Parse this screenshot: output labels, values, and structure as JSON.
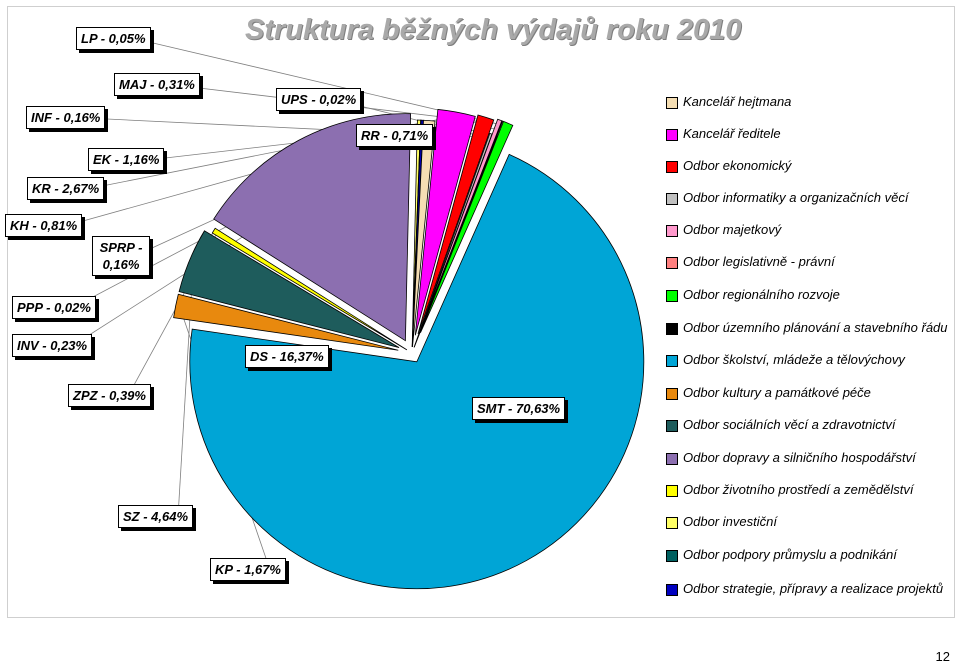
{
  "title": "Struktura běžných výdajů roku 2010",
  "page_number": "12",
  "chart_data": {
    "type": "pie",
    "title": "Struktura běžných výdajů roku 2010",
    "slices": [
      {
        "code": "SMT",
        "label": "SMT - 70,63%",
        "value": 70.63,
        "legend": "Odbor školství, mládeže a tělovýchovy",
        "color": "#00a5d6"
      },
      {
        "code": "KP",
        "label": "KP - 1,67%",
        "value": 1.67,
        "legend": "Odbor kultury a památkové péče",
        "color": "#e8890e"
      },
      {
        "code": "SZ",
        "label": "SZ - 4,64%",
        "value": 4.64,
        "legend": "Odbor sociálních věcí a zdravotnictví",
        "color": "#1e5c5c"
      },
      {
        "code": "ZPZ",
        "label": "ZPZ - 0,39%",
        "value": 0.39,
        "legend": "Odbor životního prostředí a zemědělství",
        "color": "#ffff00"
      },
      {
        "code": "DS",
        "label": "DS - 16,37%",
        "value": 16.37,
        "legend": "Odbor dopravy a silničního hospodářství",
        "color": "#8c6fb0"
      },
      {
        "code": "INV",
        "label": "INV - 0,23%",
        "value": 0.23,
        "legend": "Odbor investiční",
        "color": "#ffff66"
      },
      {
        "code": "PPP",
        "label": "PPP - 0,02%",
        "value": 0.02,
        "legend": "Odbor podpory průmyslu a podnikání",
        "color": "#006060"
      },
      {
        "code": "SPRP",
        "label": "SPRP - 0,16%",
        "value": 0.16,
        "legend": "Odbor strategie, přípravy a realizace projektů",
        "color": "#0000c0"
      },
      {
        "code": "KH",
        "label": "KH - 0,81%",
        "value": 0.81,
        "legend": "Kancelář hejtmana",
        "color": "#f5deb3"
      },
      {
        "code": "KR",
        "label": "KR - 2,67%",
        "value": 2.67,
        "legend": "Kancelář ředitele",
        "color": "#ff00ff"
      },
      {
        "code": "EK",
        "label": "EK - 1,16%",
        "value": 1.16,
        "legend": "Odbor ekonomický",
        "color": "#ff0000"
      },
      {
        "code": "INF",
        "label": "INF - 0,16%",
        "value": 0.16,
        "legend": "Odbor informatiky a organizačních věcí",
        "color": "#c0c0c0"
      },
      {
        "code": "MAJ",
        "label": "MAJ - 0,31%",
        "value": 0.31,
        "legend": "Odbor majetkový",
        "color": "#ff99cc"
      },
      {
        "code": "LP",
        "label": "LP - 0,05%",
        "value": 0.05,
        "legend": "Odbor legislativně - právní",
        "color": "#ff8080"
      },
      {
        "code": "UPS",
        "label": "UPS - 0,02%",
        "value": 0.02,
        "legend": "Odbor územního plánování a stavebního řádu",
        "color": "#000000"
      },
      {
        "code": "RR",
        "label": "RR - 0,71%",
        "value": 0.71,
        "legend": "Odbor regionálního rozvoje",
        "color": "#00ff00"
      }
    ],
    "legend": {
      "placement": "right",
      "items": [
        {
          "label": "Kancelář hejtmana",
          "color": "#f5deb3"
        },
        {
          "label": "Kancelář ředitele",
          "color": "#ff00ff"
        },
        {
          "label": "Odbor ekonomický",
          "color": "#ff0000"
        },
        {
          "label": "Odbor informatiky a organizačních věcí",
          "color": "#c0c0c0"
        },
        {
          "label": "Odbor majetkový",
          "color": "#ff99cc"
        },
        {
          "label": "Odbor legislativně - právní",
          "color": "#ff8080"
        },
        {
          "label": "Odbor regionálního rozvoje",
          "color": "#00ff00"
        },
        {
          "label": "Odbor územního plánování a stavebního řádu",
          "color": "#000000"
        },
        {
          "label": "Odbor školství, mládeže a tělovýchovy",
          "color": "#00a5d6"
        },
        {
          "label": "Odbor kultury a památkové péče",
          "color": "#e8890e"
        },
        {
          "label": "Odbor sociálních věcí a zdravotnictví",
          "color": "#1e5c5c"
        },
        {
          "label": "Odbor dopravy a silničního hospodářství",
          "color": "#8c6fb0"
        },
        {
          "label": "Odbor životního prostředí a zemědělství",
          "color": "#ffff00"
        },
        {
          "label": "Odbor investiční",
          "color": "#ffff66"
        },
        {
          "label": "Odbor podpory průmyslu a podnikání",
          "color": "#006060"
        },
        {
          "label": "Odbor strategie, přípravy a realizace projektů",
          "color": "#0000c0"
        }
      ]
    }
  }
}
